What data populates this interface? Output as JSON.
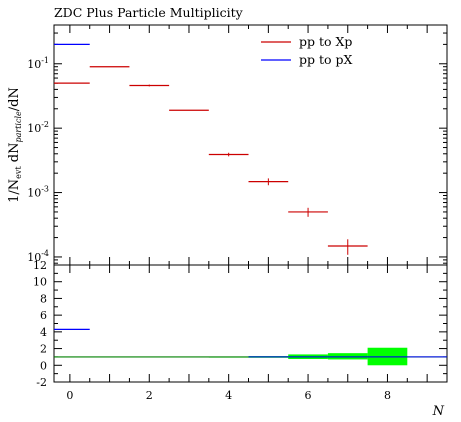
{
  "chart_data": {
    "type": "scatter",
    "title": "ZDC Plus Particle Multiplicity",
    "xlabel": "N",
    "ylabel": "1/N_evt dN_particle/dN",
    "ylabel_parts": {
      "base": "1/N",
      "sub1": "evt",
      "mid": " dN",
      "sub2": "particle",
      "tail": "/dN"
    },
    "top_panel": {
      "yscale": "log",
      "ylim": [
        7.5e-05,
        0.4
      ],
      "yticks": [
        {
          "v": 0.1,
          "m": "10",
          "e": "-1"
        },
        {
          "v": 0.01,
          "m": "10",
          "e": "-2"
        },
        {
          "v": 0.001,
          "m": "10",
          "e": "-3"
        },
        {
          "v": 0.0001,
          "m": "10",
          "e": "-4"
        }
      ],
      "series": [
        {
          "name": "pp to Xp",
          "color": "#cc0000",
          "points": [
            {
              "x0": -0.5,
              "x1": 0.5,
              "y": 0.05,
              "err": 0
            },
            {
              "x0": 0.5,
              "x1": 1.5,
              "y": 0.09,
              "err": 0
            },
            {
              "x0": 1.5,
              "x1": 2.5,
              "y": 0.046,
              "err": 0.0015
            },
            {
              "x0": 2.5,
              "x1": 3.5,
              "y": 0.019,
              "err": 0
            },
            {
              "x0": 3.5,
              "x1": 4.5,
              "y": 0.0039,
              "err": 0.00025
            },
            {
              "x0": 4.5,
              "x1": 5.5,
              "y": 0.00148,
              "err": 0.00018
            },
            {
              "x0": 5.5,
              "x1": 6.5,
              "y": 0.0005,
              "err": 8e-05
            },
            {
              "x0": 6.5,
              "x1": 7.5,
              "y": 0.000148,
              "err": 4e-05
            }
          ]
        },
        {
          "name": "pp to pX",
          "color": "#0000ff",
          "points": [
            {
              "x0": -0.5,
              "x1": 0.5,
              "y": 0.2,
              "err": 0
            }
          ]
        }
      ]
    },
    "ratio_panel": {
      "ylim": [
        -2,
        12
      ],
      "yticks": [
        "-2",
        "0",
        "2",
        "4",
        "6",
        "8",
        "10",
        "12"
      ],
      "reference_line": {
        "y": 1,
        "color": "#008000"
      },
      "bands": [
        {
          "x0": 3.5,
          "x1": 4.5,
          "y0": 0.96,
          "y1": 1.04
        },
        {
          "x0": 4.5,
          "x1": 5.5,
          "y0": 0.9,
          "y1": 1.1
        },
        {
          "x0": 5.5,
          "x1": 6.5,
          "y0": 0.75,
          "y1": 1.3
        },
        {
          "x0": 6.5,
          "x1": 7.5,
          "y0": 0.7,
          "y1": 1.45
        },
        {
          "x0": 7.5,
          "x1": 8.5,
          "y0": 0.0,
          "y1": 2.1
        }
      ],
      "band_color": "#00ff00",
      "lines": [
        {
          "x0": -0.5,
          "x1": 0.5,
          "y": 4.3,
          "color": "#0000ff"
        }
      ]
    },
    "xlim": [
      -0.4,
      9.5
    ],
    "xticks": [
      "0",
      "2",
      "4",
      "6",
      "8"
    ],
    "legend_placement": "top-right"
  }
}
